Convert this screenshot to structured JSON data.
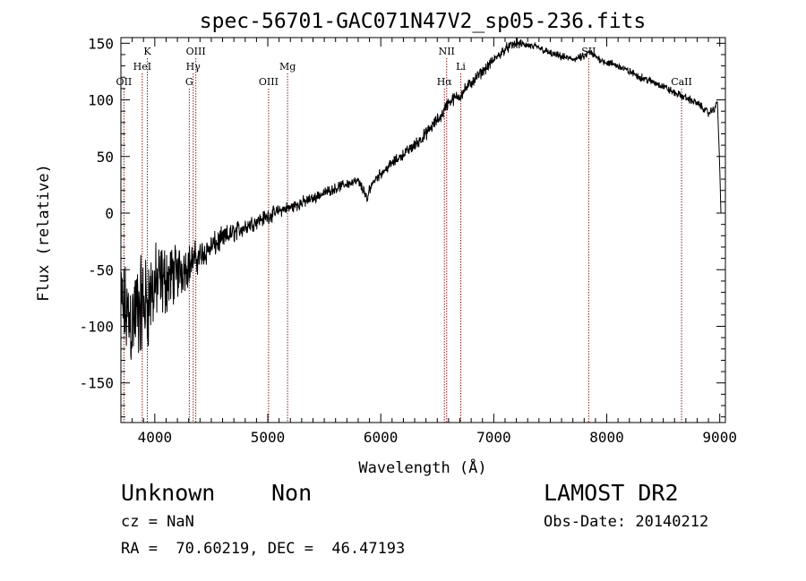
{
  "chart_data": {
    "type": "line",
    "title": "spec-56701-GAC071N47V2_sp05-236.fits",
    "xlabel": "Wavelength (Å)",
    "ylabel": "Flux (relative)",
    "xlim": [
      3700,
      9050
    ],
    "ylim": [
      -185,
      155
    ],
    "xticks": [
      4000,
      5000,
      6000,
      7000,
      8000,
      9000
    ],
    "yticks": [
      -150,
      -100,
      -50,
      0,
      50,
      100,
      150
    ],
    "grid": false,
    "line_color": "#000000",
    "marker_color": "#8b1a1a",
    "lines": [
      {
        "label": "OII",
        "wavelength": 3727,
        "row": 3
      },
      {
        "label": "K",
        "wavelength": 3934,
        "row": 1
      },
      {
        "label": "HeI",
        "wavelength": 3889,
        "row": 2
      },
      {
        "label": "OIII",
        "wavelength": 4363,
        "row": 1
      },
      {
        "label": "Hγ",
        "wavelength": 4340,
        "row": 2
      },
      {
        "label": "G",
        "wavelength": 4305,
        "row": 3
      },
      {
        "label": "OIII",
        "wavelength": 5007,
        "row": 3
      },
      {
        "label": "Mg",
        "wavelength": 5175,
        "row": 2
      },
      {
        "label": "NII",
        "wavelength": 6583,
        "row": 1
      },
      {
        "label": "Li",
        "wavelength": 6708,
        "row": 2
      },
      {
        "label": "Hα",
        "wavelength": 6563,
        "row": 3
      },
      {
        "label": "SII",
        "wavelength": 7840,
        "row": 1
      },
      {
        "label": "CaII",
        "wavelength": 8662,
        "row": 3
      }
    ],
    "spectrum": {
      "x": [
        3700,
        3750,
        3800,
        3850,
        3900,
        3950,
        4000,
        4100,
        4200,
        4300,
        4400,
        4500,
        4600,
        4700,
        4800,
        4900,
        5000,
        5100,
        5200,
        5300,
        5400,
        5500,
        5600,
        5700,
        5800,
        5850,
        5880,
        5900,
        5950,
        6000,
        6100,
        6200,
        6300,
        6400,
        6500,
        6550,
        6563,
        6600,
        6700,
        6800,
        6900,
        7000,
        7100,
        7200,
        7300,
        7400,
        7500,
        7600,
        7700,
        7800,
        7850,
        7900,
        8000,
        8100,
        8200,
        8300,
        8400,
        8500,
        8600,
        8700,
        8800,
        8850,
        8900,
        8950,
        8980,
        9000,
        9010
      ],
      "y": [
        -80,
        -90,
        -95,
        -85,
        -80,
        -75,
        -65,
        -58,
        -52,
        -45,
        -38,
        -30,
        -23,
        -17,
        -12,
        -7,
        -3,
        2,
        5,
        9,
        13,
        18,
        22,
        26,
        28,
        20,
        10,
        22,
        30,
        35,
        44,
        52,
        60,
        70,
        82,
        88,
        92,
        98,
        104,
        115,
        125,
        135,
        145,
        150,
        148,
        146,
        141,
        138,
        136,
        138,
        142,
        138,
        133,
        130,
        125,
        120,
        116,
        112,
        106,
        102,
        97,
        93,
        88,
        92,
        98,
        40,
        0
      ],
      "noise": [
        32,
        38,
        42,
        42,
        40,
        38,
        32,
        28,
        22,
        16,
        12,
        10,
        9,
        8,
        7,
        6,
        6,
        5,
        5,
        5,
        4,
        4,
        4,
        4,
        4,
        4,
        4,
        4,
        4,
        4,
        4,
        4,
        5,
        5,
        5,
        5,
        5,
        5,
        5,
        5,
        4,
        4,
        4,
        4,
        3,
        3,
        3,
        3,
        3,
        3,
        3,
        3,
        3,
        3,
        3,
        3,
        3,
        3,
        3,
        3,
        3,
        3,
        3,
        3,
        2,
        2,
        0
      ]
    }
  },
  "info": {
    "class": "Unknown",
    "subclass": "Non",
    "survey": "LAMOST DR2",
    "cz": "cz = NaN",
    "obs_date": "Obs-Date: 20140212",
    "radec": "RA =  70.60219, DEC =  46.47193"
  }
}
